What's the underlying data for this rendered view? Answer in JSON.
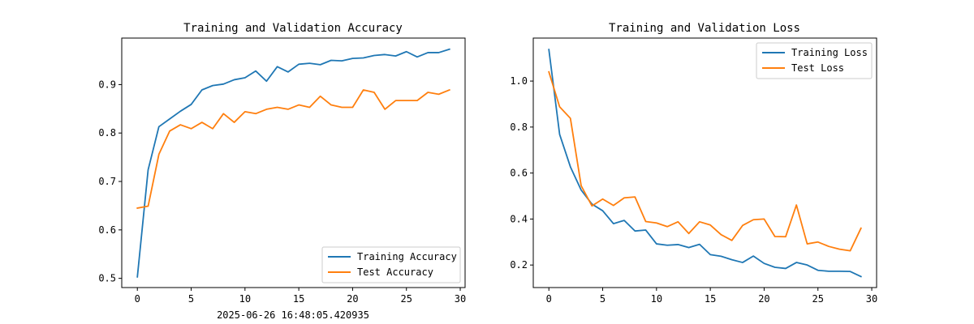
{
  "chart_data": [
    {
      "type": "line",
      "title": "Training and Validation Accuracy",
      "xlabel": "",
      "ylabel": "",
      "xlim": [
        -1.45,
        30.45
      ],
      "ylim": [
        0.481,
        0.996
      ],
      "xticks": [
        0,
        5,
        10,
        15,
        20,
        25,
        30
      ],
      "yticks": [
        0.5,
        0.6,
        0.7,
        0.8,
        0.9
      ],
      "legend_position": "lower-right",
      "series": [
        {
          "name": "Training Accuracy",
          "color": "#1f77b4",
          "x": [
            0,
            1,
            2,
            3,
            4,
            5,
            6,
            7,
            8,
            9,
            10,
            11,
            12,
            13,
            14,
            15,
            16,
            17,
            18,
            19,
            20,
            21,
            22,
            23,
            24,
            25,
            26,
            27,
            28,
            29
          ],
          "values": [
            0.503,
            0.724,
            0.813,
            0.829,
            0.845,
            0.859,
            0.889,
            0.898,
            0.901,
            0.91,
            0.914,
            0.928,
            0.907,
            0.937,
            0.926,
            0.942,
            0.944,
            0.941,
            0.95,
            0.949,
            0.954,
            0.955,
            0.96,
            0.962,
            0.959,
            0.968,
            0.957,
            0.966,
            0.966,
            0.973
          ]
        },
        {
          "name": "Test Accuracy",
          "color": "#ff7f0e",
          "x": [
            0,
            1,
            2,
            3,
            4,
            5,
            6,
            7,
            8,
            9,
            10,
            11,
            12,
            13,
            14,
            15,
            16,
            17,
            18,
            19,
            20,
            21,
            22,
            23,
            24,
            25,
            26,
            27,
            28,
            29
          ],
          "values": [
            0.645,
            0.649,
            0.756,
            0.804,
            0.817,
            0.809,
            0.822,
            0.809,
            0.84,
            0.822,
            0.844,
            0.84,
            0.849,
            0.853,
            0.849,
            0.858,
            0.853,
            0.876,
            0.858,
            0.853,
            0.853,
            0.889,
            0.884,
            0.849,
            0.867,
            0.867,
            0.867,
            0.884,
            0.88,
            0.889
          ]
        }
      ]
    },
    {
      "type": "line",
      "title": "Training and Validation Loss",
      "xlabel": "",
      "ylabel": "",
      "xlim": [
        -1.45,
        30.45
      ],
      "ylim": [
        0.102,
        1.187
      ],
      "xticks": [
        0,
        5,
        10,
        15,
        20,
        25,
        30
      ],
      "yticks": [
        0.2,
        0.4,
        0.6,
        0.8,
        1.0
      ],
      "legend_position": "upper-right",
      "series": [
        {
          "name": "Training Loss",
          "color": "#1f77b4",
          "x": [
            0,
            1,
            2,
            3,
            4,
            5,
            6,
            7,
            8,
            9,
            10,
            11,
            12,
            13,
            14,
            15,
            16,
            17,
            18,
            19,
            20,
            21,
            22,
            23,
            24,
            25,
            26,
            27,
            28,
            29
          ],
          "values": [
            1.137,
            0.768,
            0.627,
            0.526,
            0.465,
            0.436,
            0.38,
            0.394,
            0.348,
            0.352,
            0.292,
            0.286,
            0.289,
            0.276,
            0.29,
            0.245,
            0.238,
            0.223,
            0.211,
            0.239,
            0.207,
            0.19,
            0.185,
            0.211,
            0.2,
            0.177,
            0.173,
            0.173,
            0.172,
            0.15
          ]
        },
        {
          "name": "Test Loss",
          "color": "#ff7f0e",
          "x": [
            0,
            1,
            2,
            3,
            4,
            5,
            6,
            7,
            8,
            9,
            10,
            11,
            12,
            13,
            14,
            15,
            16,
            17,
            18,
            19,
            20,
            21,
            22,
            23,
            24,
            25,
            26,
            27,
            28,
            29
          ],
          "values": [
            1.04,
            0.888,
            0.838,
            0.545,
            0.457,
            0.487,
            0.459,
            0.492,
            0.496,
            0.389,
            0.383,
            0.367,
            0.388,
            0.337,
            0.388,
            0.374,
            0.332,
            0.307,
            0.372,
            0.397,
            0.4,
            0.324,
            0.323,
            0.461,
            0.292,
            0.3,
            0.281,
            0.269,
            0.262,
            0.36
          ]
        }
      ]
    }
  ],
  "footer_text": "2025-06-26 16:48:05.420935"
}
